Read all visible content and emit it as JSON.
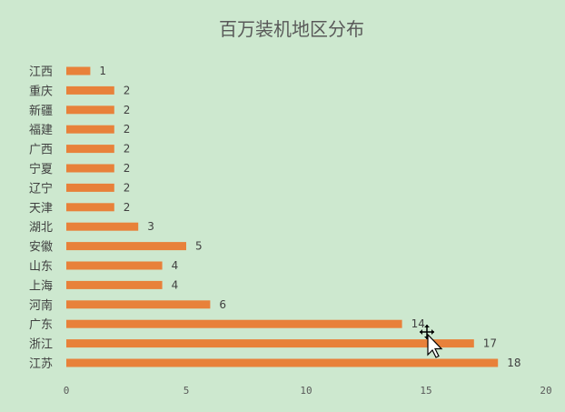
{
  "chart_data": {
    "type": "bar",
    "orientation": "horizontal",
    "title": "百万装机地区分布",
    "categories": [
      "江西",
      "重庆",
      "新疆",
      "福建",
      "广西",
      "宁夏",
      "辽宁",
      "天津",
      "湖北",
      "安徽",
      "山东",
      "上海",
      "河南",
      "广东",
      "浙江",
      "江苏"
    ],
    "values": [
      1,
      2,
      2,
      2,
      2,
      2,
      2,
      2,
      3,
      5,
      4,
      4,
      6,
      14,
      17,
      18
    ],
    "xlim": [
      0,
      20
    ],
    "xticks": [
      "0",
      "5",
      "10",
      "15",
      "20"
    ],
    "grid": false,
    "legend": "none",
    "bar_color": "#e8813a",
    "data_labels": true
  }
}
